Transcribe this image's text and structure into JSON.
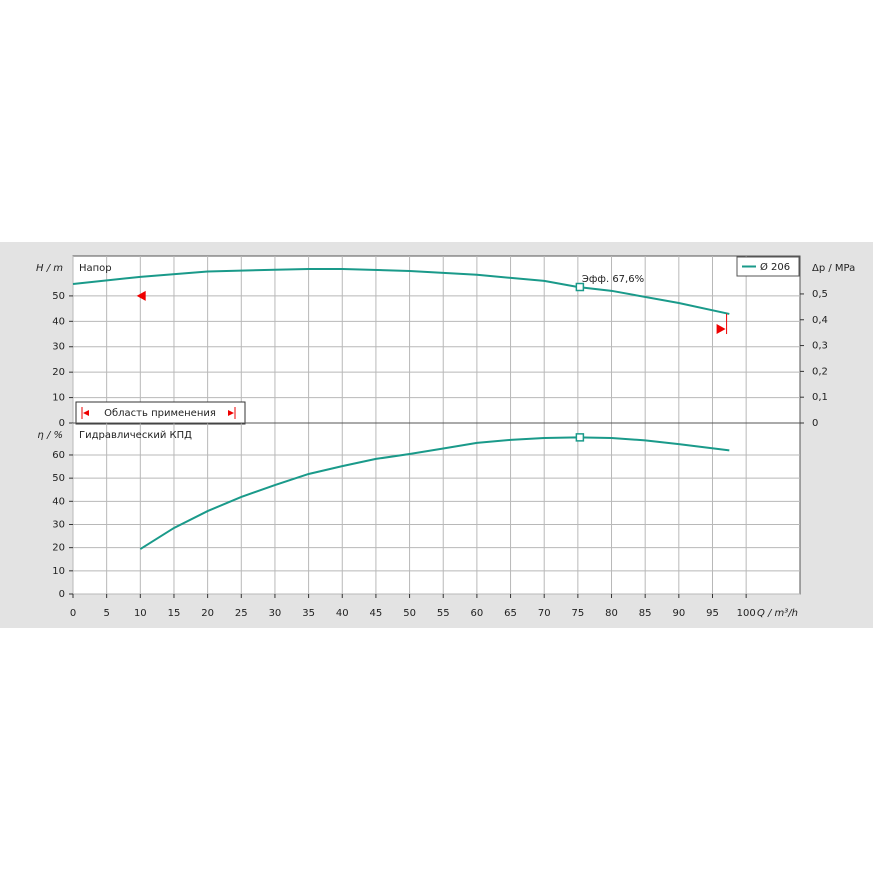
{
  "chart_data": [
    {
      "type": "line",
      "ylabel": "H / m",
      "title": "Напор",
      "y2label": "Δp / MPa",
      "x": [
        0,
        10,
        20,
        30,
        35,
        40,
        50,
        60,
        70,
        75,
        80,
        90,
        97.5
      ],
      "series": [
        {
          "name": "Ø 206",
          "color": "#1a9a8a",
          "values": [
            54.7,
            57.5,
            59.6,
            60.3,
            60.6,
            60.6,
            59.8,
            58.3,
            55.9,
            53.5,
            52,
            47.2,
            42.9
          ]
        }
      ],
      "marker_x": 75.3,
      "marker_value": 53.5,
      "annotation": "Эфф. 67,6%",
      "application_range": {
        "label": "Область применения",
        "min": 10.5,
        "max": 96.5
      },
      "xlim": [
        0,
        108
      ],
      "ylim": [
        0,
        65.7
      ],
      "yticks": [
        0,
        10,
        20,
        30,
        40,
        50
      ],
      "y2lim": [
        0,
        0.647
      ],
      "y2ticks": [
        0,
        {
          "value": 0.1,
          "label": "0,1"
        },
        {
          "value": 0.2,
          "label": "0,2"
        },
        {
          "value": 0.3,
          "label": "0,3"
        },
        {
          "value": 0.4,
          "label": "0,4"
        },
        {
          "value": 0.5,
          "label": "0,5"
        }
      ],
      "grid": true,
      "legend": "upper right"
    },
    {
      "type": "line",
      "ylabel": "η / %",
      "title": "Гидравлический КПД",
      "xlabel": "Q / m³/h",
      "x": [
        10,
        15,
        20,
        25,
        30,
        35,
        40,
        45,
        50,
        55,
        60,
        65,
        70,
        75,
        80,
        85,
        90,
        97.5
      ],
      "series": [
        {
          "color": "#1a9a8a",
          "values": [
            19.4,
            28.5,
            35.8,
            41.9,
            47,
            51.8,
            55.2,
            58.3,
            60.4,
            62.8,
            65.2,
            66.5,
            67.3,
            67.6,
            67.3,
            66.3,
            64.7,
            62
          ]
        }
      ],
      "marker_x": 75.3,
      "marker_value": 67.6,
      "xlim": [
        0,
        108
      ],
      "xticks": [
        0,
        5,
        10,
        15,
        20,
        25,
        30,
        35,
        40,
        45,
        50,
        55,
        60,
        65,
        70,
        75,
        80,
        85,
        90,
        95,
        100
      ],
      "ylim": [
        0,
        73.8
      ],
      "yticks": [
        0,
        10,
        20,
        30,
        40,
        50,
        60
      ],
      "grid": true
    }
  ]
}
